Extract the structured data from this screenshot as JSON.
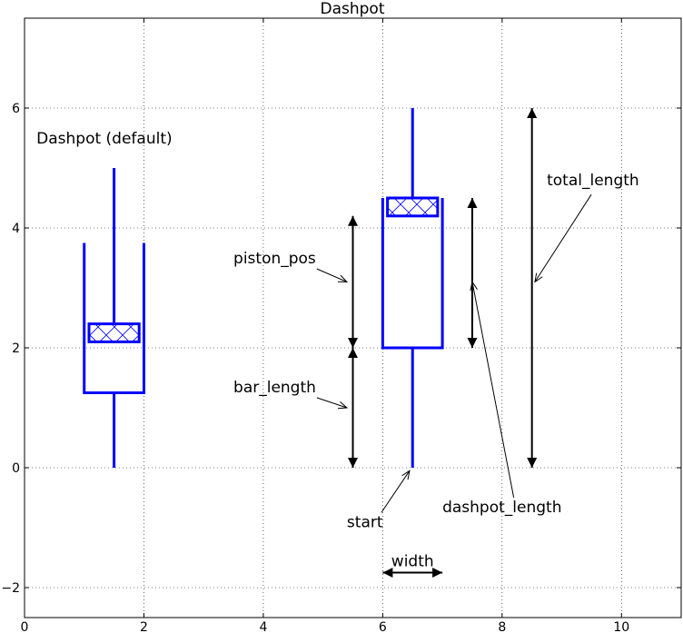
{
  "chart_data": {
    "type": "diagram",
    "title": "Dashpot",
    "xlim": [
      0,
      11
    ],
    "ylim": [
      -2.5,
      7.5
    ],
    "grid": true,
    "xticks": [
      0,
      2,
      4,
      6,
      8,
      10
    ],
    "yticks": [
      -2,
      0,
      2,
      4,
      6
    ],
    "xtick_labels": [
      "0",
      "2",
      "4",
      "6",
      "8",
      "10"
    ],
    "ytick_labels": [
      "−2",
      "0",
      "2",
      "4",
      "6"
    ],
    "colors": {
      "dashpot": "#0000ff",
      "annotation": "#000000",
      "grid": "#000000"
    },
    "dashpots": [
      {
        "label": "Dashpot (default)",
        "label_pos": [
          0.2,
          5.5
        ],
        "x_center": 1.5,
        "width": 1,
        "start": 0,
        "bar_length": 1.25,
        "dashpot_length": 2.5,
        "piston_pos": 2.1,
        "piston_height": 0.3,
        "total_length": 5
      },
      {
        "label": "",
        "x_center": 6.5,
        "width": 1,
        "start": 0,
        "bar_length": 2,
        "dashpot_length": 2.5,
        "piston_pos": 4.2,
        "piston_height": 0.3,
        "total_length": 6
      }
    ],
    "dimension_arrows": [
      {
        "name": "piston_pos",
        "from": [
          5.5,
          2
        ],
        "to": [
          5.5,
          4.2
        ]
      },
      {
        "name": "bar_length",
        "from": [
          5.5,
          0
        ],
        "to": [
          5.5,
          2
        ]
      },
      {
        "name": "dashpot_length",
        "from": [
          7.5,
          2
        ],
        "to": [
          7.5,
          4.5
        ]
      },
      {
        "name": "total_length",
        "from": [
          8.5,
          0
        ],
        "to": [
          8.5,
          6
        ]
      },
      {
        "name": "width",
        "from": [
          6,
          -1.75
        ],
        "to": [
          7,
          -1.75
        ]
      }
    ],
    "annotations": [
      {
        "text": "piston_pos",
        "text_pos": [
          3.5,
          3.5
        ],
        "point": [
          5.4,
          3.1
        ]
      },
      {
        "text": "bar_length",
        "text_pos": [
          3.5,
          1.35
        ],
        "point": [
          5.4,
          1.0
        ]
      },
      {
        "text": "start",
        "text_pos": [
          5.4,
          -0.9
        ],
        "point": [
          6.45,
          -0.05
        ]
      },
      {
        "text": "dashpot_length",
        "text_pos": [
          7.0,
          -0.65
        ],
        "point": [
          7.5,
          3.1
        ]
      },
      {
        "text": "total_length",
        "text_pos": [
          8.75,
          4.8
        ],
        "point": [
          8.55,
          3.1
        ]
      },
      {
        "text": "width",
        "text_pos": [
          6.5,
          -1.55
        ],
        "point": null
      }
    ]
  }
}
